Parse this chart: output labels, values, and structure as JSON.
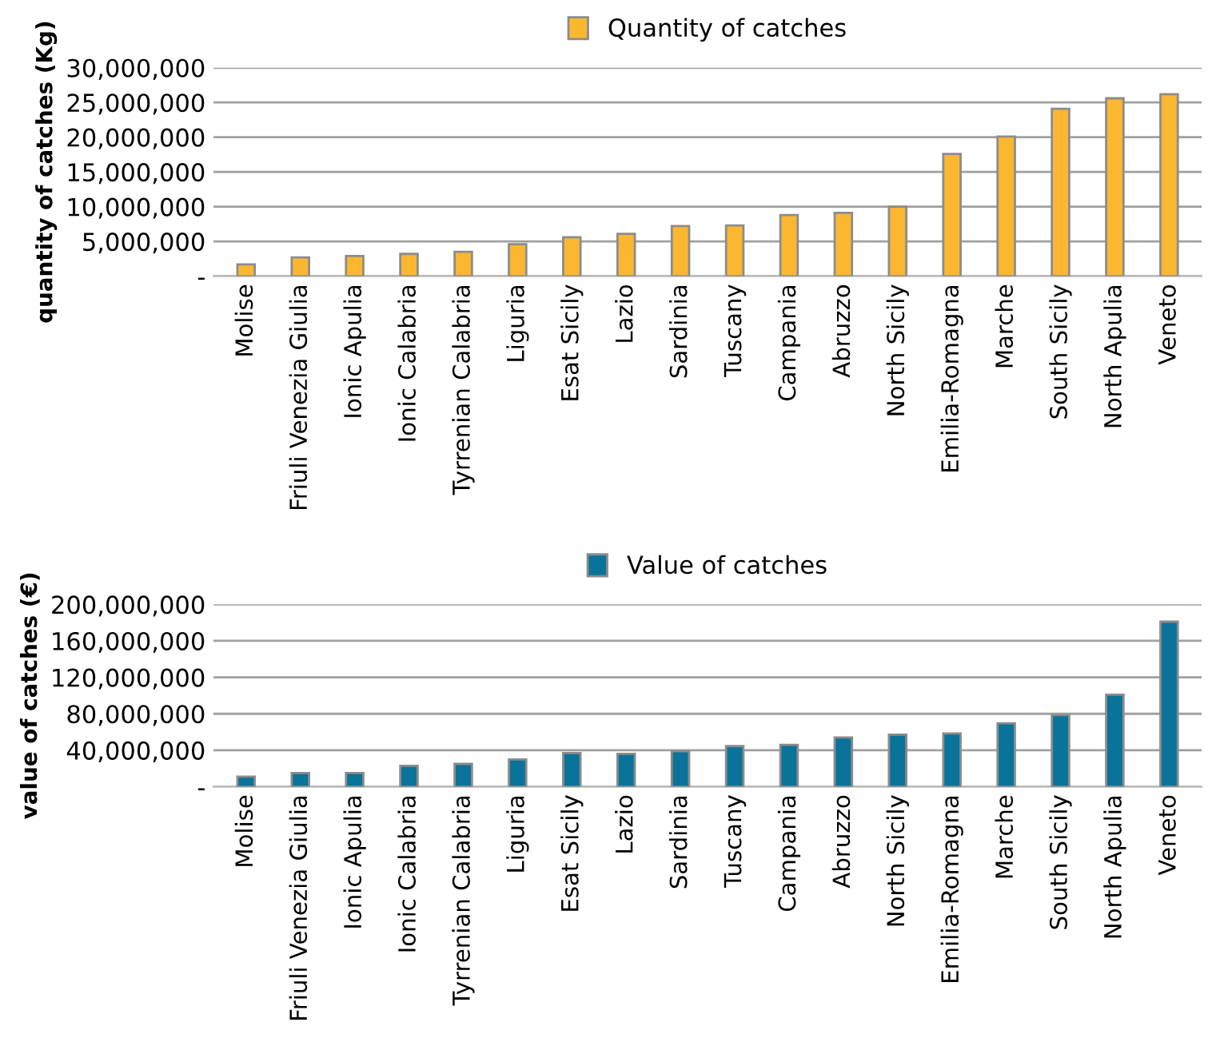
{
  "chart_data": [
    {
      "type": "bar",
      "ylabel": "quantity of catches (Kg)",
      "categories": [
        "Molise",
        "Friuli Venezia Giulia",
        "Ionic Apulia",
        "Ionic Calabria",
        "Tyrrenian Calabria",
        "Liguria",
        "Esat Sicily",
        "Lazio",
        "Sardinia",
        "Tuscany",
        "Campania",
        "Abruzzo",
        "North Sicily",
        "Emilia-Romagna",
        "Marche",
        "South Sicily",
        "North Apulia",
        "Veneto"
      ],
      "series": [
        {
          "name": "Quantity of catches",
          "color": "#fbb730",
          "values": [
            1700000,
            2700000,
            2900000,
            3200000,
            3500000,
            4600000,
            5600000,
            6100000,
            7200000,
            7300000,
            8800000,
            9100000,
            10000000,
            17600000,
            20100000,
            24100000,
            25600000,
            26200000
          ]
        }
      ],
      "ylim": [
        0,
        30000000
      ],
      "yticks": [
        {
          "value": 0,
          "label": "-"
        },
        {
          "value": 5000000,
          "label": "5,000,000"
        },
        {
          "value": 10000000,
          "label": "10,000,000"
        },
        {
          "value": 15000000,
          "label": "15,000,000"
        },
        {
          "value": 20000000,
          "label": "20,000,000"
        },
        {
          "value": 25000000,
          "label": "25,000,000"
        },
        {
          "value": 30000000,
          "label": "30,000,000"
        }
      ],
      "grid": "y",
      "legend": "top"
    },
    {
      "type": "bar",
      "ylabel": "value of catches (€)",
      "categories": [
        "Molise",
        "Friuli Venezia Giulia",
        "Ionic Apulia",
        "Ionic Calabria",
        "Tyrrenian Calabria",
        "Liguria",
        "Esat Sicily",
        "Lazio",
        "Sardinia",
        "Tuscany",
        "Campania",
        "Abruzzo",
        "North Sicily",
        "Emilia-Romagna",
        "Marche",
        "South Sicily",
        "North Apulia",
        "Veneto"
      ],
      "series": [
        {
          "name": "Value of catches",
          "color": "#0a7399",
          "values": [
            11000000,
            15000000,
            15000000,
            23000000,
            25000000,
            30000000,
            37000000,
            36000000,
            39000000,
            44500000,
            46000000,
            54000000,
            57000000,
            58500000,
            69500000,
            78500000,
            101000000,
            181000000
          ]
        }
      ],
      "ylim": [
        0,
        200000000
      ],
      "yticks": [
        {
          "value": 0,
          "label": "-"
        },
        {
          "value": 40000000,
          "label": "40,000,000"
        },
        {
          "value": 80000000,
          "label": "80,000,000"
        },
        {
          "value": 120000000,
          "label": "120,000,000"
        },
        {
          "value": 160000000,
          "label": "160,000,000"
        },
        {
          "value": 200000000,
          "label": "200,000,000"
        }
      ],
      "grid": "y",
      "legend": "top"
    }
  ]
}
